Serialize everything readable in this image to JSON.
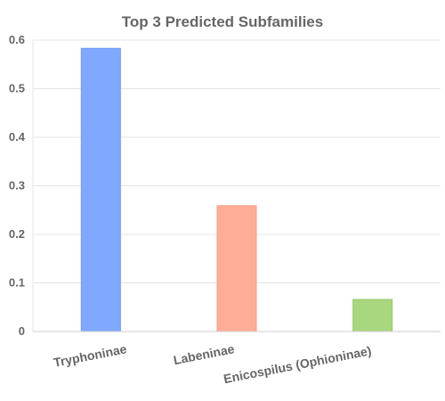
{
  "chart_data": {
    "type": "bar",
    "title": "Top 3 Predicted Subfamilies",
    "categories": [
      "Tryphoninae",
      "Labeninae",
      "Enicospilus (Ophioninae)"
    ],
    "values": [
      0.583,
      0.259,
      0.066
    ],
    "ylim": [
      0,
      0.6
    ],
    "yticks": [
      0,
      0.1,
      0.2,
      0.3,
      0.4,
      0.5,
      0.6
    ],
    "bar_colors": [
      "#80a8ff",
      "#ffad96",
      "#a9d77f"
    ],
    "bar_border_colors": [
      "#6e99f5",
      "#f39d86",
      "#98c96c"
    ],
    "grid": true,
    "legend": "none"
  }
}
